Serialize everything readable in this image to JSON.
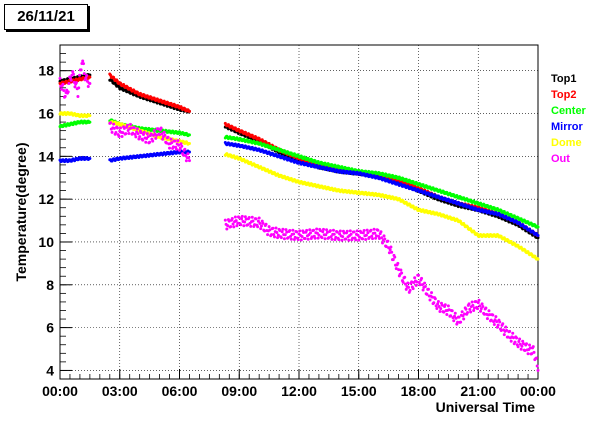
{
  "date_label": "26/11/21",
  "chart_data": {
    "type": "scatter",
    "title": "",
    "xlabel": "Universal Time",
    "ylabel": "Temperature(degree)",
    "xlim": [
      0,
      24
    ],
    "ylim": [
      3.6,
      19.2
    ],
    "grid": true,
    "legend_position": "right",
    "x_ticks": [
      0,
      3,
      6,
      9,
      12,
      15,
      18,
      21,
      24
    ],
    "x_tick_labels": [
      "00:00",
      "03:00",
      "06:00",
      "09:00",
      "12:00",
      "15:00",
      "18:00",
      "21:00",
      "00:00"
    ],
    "y_ticks": [
      4,
      6,
      8,
      10,
      12,
      14,
      16,
      18
    ],
    "y_tick_labels": [
      "4",
      "6",
      "8",
      "10",
      "12",
      "14",
      "16",
      "18"
    ],
    "series": [
      {
        "name": "Top1",
        "color": "#000000",
        "segments": [
          [
            [
              0,
              17.5
            ],
            [
              0.5,
              17.6
            ],
            [
              1,
              17.7
            ],
            [
              1.5,
              17.8
            ]
          ],
          [
            [
              2.5,
              17.6
            ],
            [
              3,
              17.2
            ],
            [
              4,
              16.8
            ],
            [
              5,
              16.5
            ],
            [
              6,
              16.2
            ],
            [
              6.5,
              16.1
            ]
          ],
          [
            [
              8.3,
              15.4
            ],
            [
              9,
              15.1
            ],
            [
              10,
              14.7
            ],
            [
              11,
              14.2
            ],
            [
              12,
              13.8
            ],
            [
              13,
              13.5
            ],
            [
              14,
              13.3
            ],
            [
              15,
              13.2
            ],
            [
              16,
              13.1
            ],
            [
              17,
              12.8
            ],
            [
              18,
              12.4
            ],
            [
              19,
              12.0
            ],
            [
              20,
              11.7
            ],
            [
              21,
              11.5
            ],
            [
              22,
              11.2
            ],
            [
              23,
              10.8
            ],
            [
              24,
              10.2
            ]
          ]
        ]
      },
      {
        "name": "Top2",
        "color": "#ff0000",
        "segments": [
          [
            [
              0,
              17.4
            ],
            [
              0.5,
              17.5
            ],
            [
              1,
              17.6
            ],
            [
              1.5,
              17.7
            ]
          ],
          [
            [
              2.5,
              17.8
            ],
            [
              3,
              17.4
            ],
            [
              4,
              16.9
            ],
            [
              5,
              16.6
            ],
            [
              6,
              16.3
            ],
            [
              6.5,
              16.1
            ]
          ],
          [
            [
              8.3,
              15.5
            ],
            [
              9,
              15.2
            ],
            [
              10,
              14.8
            ],
            [
              11,
              14.3
            ],
            [
              12,
              13.9
            ],
            [
              13,
              13.6
            ],
            [
              14,
              13.4
            ],
            [
              15,
              13.2
            ],
            [
              16,
              13.1
            ],
            [
              17,
              12.9
            ],
            [
              18,
              12.5
            ],
            [
              19,
              12.1
            ],
            [
              20,
              11.8
            ],
            [
              21,
              11.6
            ],
            [
              22,
              11.3
            ],
            [
              23,
              10.9
            ],
            [
              24,
              10.3
            ]
          ]
        ]
      },
      {
        "name": "Center",
        "color": "#00ff00",
        "segments": [
          [
            [
              0,
              15.4
            ],
            [
              0.5,
              15.5
            ],
            [
              1,
              15.6
            ],
            [
              1.5,
              15.6
            ]
          ],
          [
            [
              2.5,
              15.7
            ],
            [
              3,
              15.5
            ],
            [
              4,
              15.3
            ],
            [
              5,
              15.2
            ],
            [
              6,
              15.1
            ],
            [
              6.5,
              15.0
            ]
          ],
          [
            [
              8.3,
              14.9
            ],
            [
              9,
              14.8
            ],
            [
              10,
              14.6
            ],
            [
              11,
              14.3
            ],
            [
              12,
              14.0
            ],
            [
              13,
              13.7
            ],
            [
              14,
              13.5
            ],
            [
              15,
              13.3
            ],
            [
              16,
              13.2
            ],
            [
              17,
              13.0
            ],
            [
              18,
              12.7
            ],
            [
              19,
              12.4
            ],
            [
              20,
              12.1
            ],
            [
              21,
              11.8
            ],
            [
              22,
              11.5
            ],
            [
              23,
              11.1
            ],
            [
              24,
              10.7
            ]
          ]
        ]
      },
      {
        "name": "Mirror",
        "color": "#0000ff",
        "segments": [
          [
            [
              0,
              13.8
            ],
            [
              0.5,
              13.8
            ],
            [
              1,
              13.9
            ],
            [
              1.5,
              13.9
            ]
          ],
          [
            [
              2.5,
              13.8
            ],
            [
              3,
              13.9
            ],
            [
              4,
              14.0
            ],
            [
              5,
              14.1
            ],
            [
              6,
              14.2
            ],
            [
              6.5,
              14.2
            ]
          ],
          [
            [
              8.3,
              14.6
            ],
            [
              9,
              14.5
            ],
            [
              10,
              14.3
            ],
            [
              11,
              14.0
            ],
            [
              12,
              13.7
            ],
            [
              13,
              13.5
            ],
            [
              14,
              13.3
            ],
            [
              15,
              13.2
            ],
            [
              16,
              13.0
            ],
            [
              17,
              12.7
            ],
            [
              18,
              12.4
            ],
            [
              19,
              12.1
            ],
            [
              20,
              11.8
            ],
            [
              21,
              11.5
            ],
            [
              22,
              11.3
            ],
            [
              23,
              10.9
            ],
            [
              24,
              10.3
            ]
          ]
        ]
      },
      {
        "name": "Dome",
        "color": "#ffff00",
        "segments": [
          [
            [
              0,
              16.0
            ],
            [
              0.5,
              16.0
            ],
            [
              1,
              15.9
            ],
            [
              1.5,
              15.9
            ]
          ],
          [
            [
              2.5,
              15.6
            ],
            [
              3,
              15.5
            ],
            [
              4,
              15.2
            ],
            [
              5,
              14.9
            ],
            [
              6,
              14.7
            ],
            [
              6.5,
              14.6
            ]
          ],
          [
            [
              8.3,
              14.1
            ],
            [
              9,
              13.9
            ],
            [
              10,
              13.5
            ],
            [
              11,
              13.1
            ],
            [
              12,
              12.8
            ],
            [
              13,
              12.6
            ],
            [
              14,
              12.4
            ],
            [
              15,
              12.3
            ],
            [
              16,
              12.2
            ],
            [
              17,
              12.0
            ],
            [
              18,
              11.5
            ],
            [
              19,
              11.3
            ],
            [
              20,
              11.0
            ],
            [
              21,
              10.3
            ],
            [
              22,
              10.3
            ],
            [
              23,
              9.8
            ],
            [
              24,
              9.2
            ]
          ]
        ]
      },
      {
        "name": "Out",
        "color": "#ff00ff",
        "segments": [
          [
            [
              0,
              17.5
            ],
            [
              0.3,
              16.8
            ],
            [
              0.6,
              17.9
            ],
            [
              0.9,
              17.0
            ],
            [
              1.1,
              18.5
            ],
            [
              1.3,
              17.6
            ],
            [
              1.5,
              17.4
            ]
          ],
          [
            [
              2.5,
              15.4
            ],
            [
              3,
              15.1
            ],
            [
              3.5,
              15.3
            ],
            [
              4,
              15.0
            ],
            [
              4.5,
              14.8
            ],
            [
              5,
              15.2
            ],
            [
              5.5,
              14.6
            ],
            [
              6,
              14.5
            ],
            [
              6.5,
              13.8
            ]
          ],
          [
            [
              8.3,
              10.8
            ],
            [
              9,
              11.0
            ],
            [
              10,
              10.9
            ],
            [
              10.5,
              10.5
            ],
            [
              11,
              10.4
            ],
            [
              12,
              10.3
            ],
            [
              13,
              10.4
            ],
            [
              14,
              10.3
            ],
            [
              15,
              10.3
            ],
            [
              16,
              10.4
            ],
            [
              16.5,
              9.8
            ],
            [
              17,
              8.7
            ],
            [
              17.5,
              7.8
            ],
            [
              18,
              8.3
            ],
            [
              18.5,
              7.6
            ],
            [
              19,
              7.0
            ],
            [
              19.5,
              6.8
            ],
            [
              20,
              6.3
            ],
            [
              20.5,
              6.9
            ],
            [
              21,
              7.1
            ],
            [
              21.5,
              6.6
            ],
            [
              22,
              6.2
            ],
            [
              22.5,
              5.7
            ],
            [
              23,
              5.3
            ],
            [
              23.5,
              5.0
            ],
            [
              23.8,
              4.9
            ],
            [
              24,
              4.0
            ]
          ]
        ]
      }
    ]
  }
}
